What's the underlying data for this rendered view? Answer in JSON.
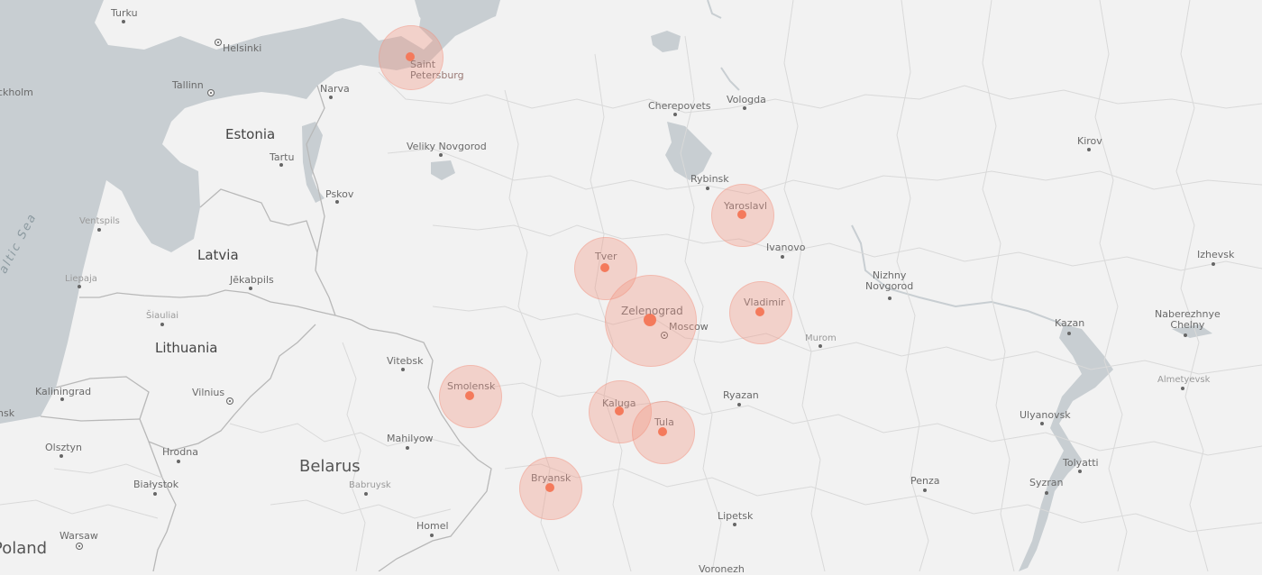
{
  "map": {
    "colors": {
      "land": "#f2f2f2",
      "water": "#c8ced2",
      "border": "#b8b8b8",
      "region_border": "#d9d9d9",
      "bubble_fill": "#f4a08a",
      "bubble_dot": "#f47a5c"
    },
    "sea_labels": [
      {
        "id": "baltic-sea",
        "text": "altic Sea"
      }
    ],
    "countries": [
      {
        "id": "estonia",
        "text": "Estonia"
      },
      {
        "id": "latvia",
        "text": "Latvia"
      },
      {
        "id": "lithuania",
        "text": "Lithuania"
      },
      {
        "id": "belarus",
        "text": "Belarus"
      },
      {
        "id": "poland",
        "text": "Poland"
      }
    ],
    "cities": [
      {
        "id": "turku",
        "text": "Turku"
      },
      {
        "id": "helsinki",
        "text": "Helsinki"
      },
      {
        "id": "stockholm",
        "text": "ckholm"
      },
      {
        "id": "tallinn",
        "text": "Tallinn"
      },
      {
        "id": "narva",
        "text": "Narva"
      },
      {
        "id": "tartu",
        "text": "Tartu"
      },
      {
        "id": "pskov",
        "text": "Pskov"
      },
      {
        "id": "veliky-novgorod",
        "text": "Veliky Novgorod"
      },
      {
        "id": "cherepovets",
        "text": "Cherepovets"
      },
      {
        "id": "vologda",
        "text": "Vologda"
      },
      {
        "id": "rybinsk",
        "text": "Rybinsk"
      },
      {
        "id": "kirov",
        "text": "Kirov"
      },
      {
        "id": "ivanovo",
        "text": "Ivanovo"
      },
      {
        "id": "nizhny-novgorod",
        "text": "Nizhny\nNovgorod"
      },
      {
        "id": "izhevsk",
        "text": "Izhevsk"
      },
      {
        "id": "kazan",
        "text": "Kazan"
      },
      {
        "id": "naberezhnye-chelny",
        "text": "Naberezhnye\nChelny"
      },
      {
        "id": "almetyevsk",
        "text": "Almetyevsk"
      },
      {
        "id": "murom",
        "text": "Murom"
      },
      {
        "id": "moscow",
        "text": "Moscow"
      },
      {
        "id": "ryazan",
        "text": "Ryazan"
      },
      {
        "id": "ulyanovsk",
        "text": "Ulyanovsk"
      },
      {
        "id": "tolyatti",
        "text": "Tolyatti"
      },
      {
        "id": "syzran",
        "text": "Syzran"
      },
      {
        "id": "penza",
        "text": "Penza"
      },
      {
        "id": "lipetsk",
        "text": "Lipetsk"
      },
      {
        "id": "voronezh",
        "text": "Voronezh"
      },
      {
        "id": "ventspils",
        "text": "Ventspils"
      },
      {
        "id": "liepaja",
        "text": "Liepaja"
      },
      {
        "id": "jekabpils",
        "text": "Jēkabpils"
      },
      {
        "id": "siauliai",
        "text": "Šiauliai"
      },
      {
        "id": "kaliningrad",
        "text": "Kaliningrad"
      },
      {
        "id": "vilnius",
        "text": "Vilnius"
      },
      {
        "id": "vitebsk",
        "text": "Vitebsk"
      },
      {
        "id": "mahilyow",
        "text": "Mahilyow"
      },
      {
        "id": "babruysk",
        "text": "Babruysk"
      },
      {
        "id": "homel",
        "text": "Homel"
      },
      {
        "id": "hrodna",
        "text": "Hrodna"
      },
      {
        "id": "olsztyn",
        "text": "Olsztyn"
      },
      {
        "id": "bialystok",
        "text": "Białystok"
      },
      {
        "id": "warsaw",
        "text": "Warsaw"
      },
      {
        "id": "minsk",
        "text": "nsk"
      }
    ],
    "markers": [
      {
        "id": "saint-petersburg",
        "text": "Saint\nPetersburg"
      },
      {
        "id": "yaroslavl",
        "text": "Yaroslavl"
      },
      {
        "id": "tver",
        "text": "Tver"
      },
      {
        "id": "zelenograd",
        "text": "Zelenograd"
      },
      {
        "id": "vladimir",
        "text": "Vladimir"
      },
      {
        "id": "smolensk",
        "text": "Smolensk"
      },
      {
        "id": "kaluga",
        "text": "Kaluga"
      },
      {
        "id": "tula",
        "text": "Tula"
      },
      {
        "id": "bryansk",
        "text": "Bryansk"
      }
    ]
  }
}
